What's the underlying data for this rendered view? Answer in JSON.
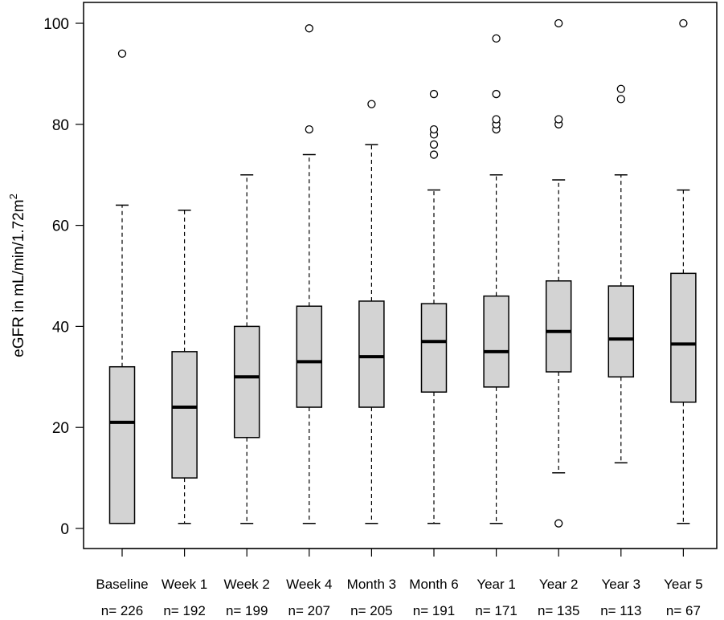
{
  "chart_data": {
    "type": "boxplot",
    "title": "",
    "xlabel": "",
    "ylabel": {
      "main": "eGFR in mL/min/1.72m",
      "superscript": "2"
    },
    "ylim": [
      0,
      100
    ],
    "yticks": [
      "0",
      "20",
      "40",
      "60",
      "80",
      "100"
    ],
    "grid": false,
    "legend": "none",
    "colors": {
      "box_fill": "#d3d3d3",
      "stroke": "#000000",
      "background": "#ffffff"
    },
    "categories": [
      {
        "label": "Baseline",
        "n": "n= 226",
        "whisker_low": 1,
        "q1": 1,
        "median": 21,
        "q3": 32,
        "whisker_high": 64,
        "outliers": [
          94
        ]
      },
      {
        "label": "Week 1",
        "n": "n= 192",
        "whisker_low": 1,
        "q1": 10,
        "median": 24,
        "q3": 35,
        "whisker_high": 63,
        "outliers": []
      },
      {
        "label": "Week 2",
        "n": "n= 199",
        "whisker_low": 1,
        "q1": 18,
        "median": 30,
        "q3": 40,
        "whisker_high": 70,
        "outliers": []
      },
      {
        "label": "Week 4",
        "n": "n= 207",
        "whisker_low": 1,
        "q1": 24,
        "median": 33,
        "q3": 44,
        "whisker_high": 74,
        "outliers": [
          79,
          99
        ]
      },
      {
        "label": "Month 3",
        "n": "n= 205",
        "whisker_low": 1,
        "q1": 24,
        "median": 34,
        "q3": 45,
        "whisker_high": 76,
        "outliers": [
          84
        ]
      },
      {
        "label": "Month 6",
        "n": "n= 191",
        "whisker_low": 1,
        "q1": 27,
        "median": 37,
        "q3": 44.5,
        "whisker_high": 67,
        "outliers": [
          74,
          76,
          78,
          79,
          86
        ]
      },
      {
        "label": "Year 1",
        "n": "n= 171",
        "whisker_low": 1,
        "q1": 28,
        "median": 35,
        "q3": 46,
        "whisker_high": 70,
        "outliers": [
          79,
          80,
          81,
          86,
          97
        ]
      },
      {
        "label": "Year 2",
        "n": "n= 135",
        "whisker_low": 11,
        "q1": 31,
        "median": 39,
        "q3": 49,
        "whisker_high": 69,
        "outliers": [
          1,
          80,
          81,
          100
        ]
      },
      {
        "label": "Year 3",
        "n": "n= 113",
        "whisker_low": 13,
        "q1": 30,
        "median": 37.5,
        "q3": 48,
        "whisker_high": 70,
        "outliers": [
          85,
          87
        ]
      },
      {
        "label": "Year 5",
        "n": "n= 67",
        "whisker_low": 1,
        "q1": 25,
        "median": 36.5,
        "q3": 50.5,
        "whisker_high": 67,
        "outliers": [
          100
        ]
      }
    ]
  }
}
